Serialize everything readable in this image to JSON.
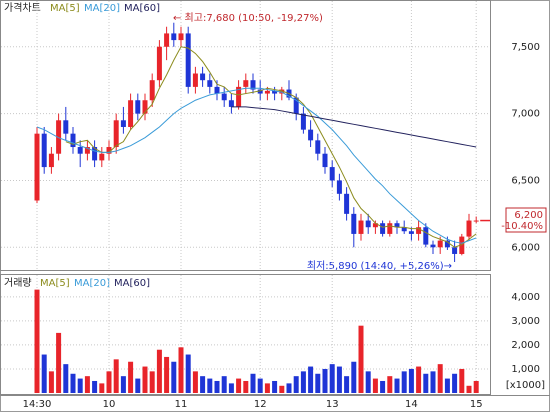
{
  "chart_data": [
    {
      "type": "candlestick",
      "title": "가격차트",
      "categories": [
        "14:30",
        null,
        null,
        null,
        null,
        null,
        null,
        null,
        null,
        null,
        "10",
        null,
        null,
        null,
        null,
        null,
        null,
        null,
        null,
        null,
        "11",
        null,
        null,
        null,
        null,
        null,
        null,
        null,
        null,
        null,
        null,
        "12",
        null,
        null,
        null,
        null,
        null,
        null,
        null,
        null,
        null,
        "13",
        null,
        null,
        null,
        null,
        null,
        null,
        null,
        null,
        null,
        null,
        "14",
        null,
        null,
        null,
        null,
        null,
        null,
        null,
        null,
        "15"
      ],
      "open": [
        6350,
        6850,
        6600,
        6700,
        6950,
        6850,
        6750,
        6700,
        6750,
        6650,
        6700,
        6750,
        6950,
        6900,
        7100,
        7000,
        7100,
        7250,
        7500,
        7600,
        7550,
        7600,
        7200,
        7300,
        7250,
        7200,
        7150,
        7100,
        7050,
        7200,
        7250,
        7180,
        7150,
        7170,
        7150,
        7180,
        7120,
        7000,
        6880,
        6800,
        6700,
        6600,
        6500,
        6400,
        6250,
        6100,
        6200,
        6150,
        6180,
        6100,
        6180,
        6150,
        6120,
        6100,
        6150,
        6020,
        6000,
        6050,
        6000,
        5950,
        6080,
        6200
      ],
      "high": [
        6900,
        6900,
        6750,
        7000,
        7050,
        6900,
        6800,
        6800,
        6800,
        6750,
        6800,
        7000,
        7050,
        7150,
        7150,
        7150,
        7300,
        7550,
        7650,
        7680,
        7650,
        7650,
        7350,
        7350,
        7300,
        7250,
        7200,
        7150,
        7250,
        7300,
        7300,
        7250,
        7200,
        7200,
        7200,
        7250,
        7150,
        7050,
        6950,
        6850,
        6750,
        6650,
        6550,
        6450,
        6300,
        6250,
        6250,
        6200,
        6200,
        6200,
        6200,
        6200,
        6150,
        6200,
        6180,
        6050,
        6080,
        6080,
        6050,
        6100,
        6250,
        6230
      ],
      "low": [
        6330,
        6550,
        6550,
        6650,
        6800,
        6700,
        6600,
        6650,
        6600,
        6600,
        6650,
        6700,
        6850,
        6880,
        6950,
        6950,
        7050,
        7200,
        7400,
        7500,
        7500,
        7150,
        7150,
        7200,
        7150,
        7100,
        7050,
        7000,
        7030,
        7150,
        7150,
        7100,
        7100,
        7100,
        7100,
        7100,
        6950,
        6850,
        6750,
        6650,
        6550,
        6450,
        6350,
        6200,
        6000,
        6050,
        6100,
        6100,
        6080,
        6080,
        6100,
        6100,
        6050,
        6050,
        6000,
        5950,
        5950,
        5980,
        5890,
        5940,
        6050,
        6180
      ],
      "close": [
        6850,
        6600,
        6700,
        6950,
        6850,
        6750,
        6700,
        6750,
        6650,
        6700,
        6750,
        6950,
        6900,
        7100,
        7000,
        7100,
        7250,
        7500,
        7600,
        7550,
        7600,
        7200,
        7300,
        7250,
        7200,
        7150,
        7100,
        7050,
        7200,
        7250,
        7180,
        7150,
        7170,
        7150,
        7180,
        7120,
        7000,
        6880,
        6800,
        6700,
        6600,
        6500,
        6400,
        6250,
        6100,
        6200,
        6150,
        6180,
        6100,
        6180,
        6150,
        6120,
        6100,
        6150,
        6020,
        6000,
        6050,
        6000,
        5950,
        6080,
        6200,
        6200
      ],
      "up_color": "#e8242a",
      "down_color": "#1f35d6",
      "series": [
        {
          "name": "MA[5]",
          "color": "#8c8c1e",
          "values": [
            null,
            null,
            null,
            null,
            6790,
            6770,
            6790,
            6800,
            6740,
            6710,
            6710,
            6760,
            6790,
            6880,
            6940,
            7010,
            7070,
            7190,
            7290,
            7400,
            7500,
            7490,
            7450,
            7390,
            7310,
            7220,
            7200,
            7150,
            7140,
            7150,
            7160,
            7170,
            7190,
            7180,
            7170,
            7150,
            7120,
            7070,
            7000,
            6900,
            6800,
            6700,
            6600,
            6490,
            6370,
            6290,
            6240,
            6180,
            6150,
            6160,
            6150,
            6150,
            6140,
            6140,
            6110,
            6080,
            6060,
            6040,
            6000,
            6020,
            6060,
            6100
          ]
        },
        {
          "name": "MA[20]",
          "color": "#3a9bd8",
          "values": [
            6900,
            6880,
            6850,
            6820,
            6800,
            6780,
            6760,
            6740,
            6720,
            6710,
            6710,
            6720,
            6740,
            6760,
            6790,
            6820,
            6860,
            6900,
            6950,
            7000,
            7040,
            7070,
            7100,
            7120,
            7140,
            7150,
            7160,
            7170,
            7180,
            7190,
            7190,
            7190,
            7180,
            7170,
            7160,
            7130,
            7100,
            7060,
            7020,
            6980,
            6930,
            6880,
            6820,
            6760,
            6690,
            6630,
            6570,
            6510,
            6460,
            6400,
            6350,
            6300,
            6250,
            6200,
            6160,
            6120,
            6090,
            6060,
            6040,
            6030,
            6050,
            6070
          ]
        },
        {
          "name": "MA[60]",
          "color": "#23235e",
          "values": [
            null,
            null,
            null,
            null,
            null,
            null,
            null,
            null,
            null,
            null,
            null,
            null,
            null,
            null,
            null,
            null,
            null,
            null,
            null,
            null,
            null,
            null,
            null,
            null,
            null,
            null,
            null,
            7050,
            7050,
            7050,
            7045,
            7040,
            7035,
            7030,
            7020,
            7010,
            7000,
            6990,
            6980,
            6970,
            6960,
            6950,
            6940,
            6930,
            6920,
            6910,
            6900,
            6890,
            6880,
            6870,
            6860,
            6850,
            6840,
            6830,
            6820,
            6810,
            6800,
            6790,
            6780,
            6770,
            6760,
            6750
          ]
        }
      ],
      "ylim": [
        5830,
        7850
      ],
      "yticks": [
        {
          "value": 6000,
          "label": "6,000"
        },
        {
          "value": 6500,
          "label": "6,500"
        },
        {
          "value": 7000,
          "label": "7,000"
        },
        {
          "value": 7500,
          "label": "7,500"
        }
      ],
      "annotations": [
        "← 최고:7,680 (10:50, -19,27%)",
        "최저:5,890 (14:40, +5,26%)→"
      ],
      "last_price": {
        "value": 6200,
        "label": "6,200",
        "change": "-10.40%"
      },
      "grid": true
    },
    {
      "type": "bar",
      "title": "거래량",
      "legend": [
        {
          "name": "MA[5]",
          "color": "#8c8c1e"
        },
        {
          "name": "MA[20]",
          "color": "#3a9bd8"
        },
        {
          "name": "MA[60]",
          "color": "#23235e"
        }
      ],
      "values": [
        4300,
        1600,
        900,
        2500,
        1200,
        800,
        600,
        700,
        500,
        400,
        900,
        1400,
        700,
        1300,
        600,
        1100,
        900,
        1800,
        1500,
        1300,
        1900,
        1600,
        900,
        700,
        600,
        500,
        700,
        400,
        600,
        500,
        800,
        600,
        400,
        500,
        300,
        400,
        700,
        900,
        1100,
        800,
        1000,
        1200,
        1100,
        700,
        1300,
        2800,
        900,
        600,
        500,
        700,
        600,
        900,
        1000,
        1100,
        800,
        900,
        1200,
        600,
        800,
        1000,
        300,
        500
      ],
      "ylim": [
        0,
        4700
      ],
      "yticks": [
        {
          "value": 1000,
          "label": "1,000"
        },
        {
          "value": 2000,
          "label": "2,000"
        },
        {
          "value": 3000,
          "label": "3,000"
        },
        {
          "value": 4000,
          "label": "4,000"
        }
      ],
      "unit": "[x1000]",
      "grid": true
    }
  ]
}
